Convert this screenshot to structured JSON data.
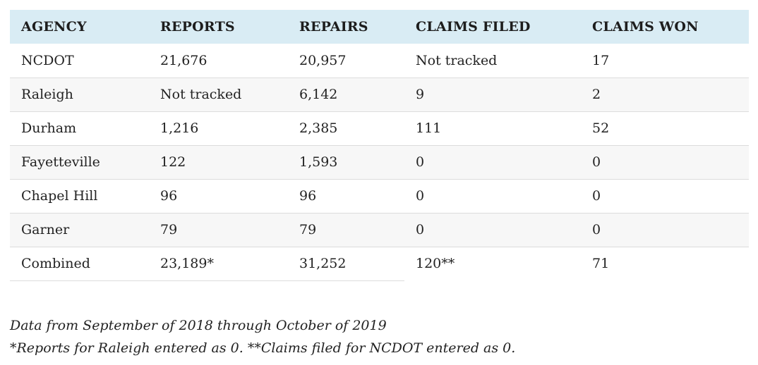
{
  "table": {
    "headers": [
      "AGENCY",
      "REPORTS",
      "REPAIRS",
      "CLAIMS FILED",
      "CLAIMS WON"
    ],
    "rows": [
      [
        "NCDOT",
        "21,676",
        "20,957",
        "Not tracked",
        "17"
      ],
      [
        "Raleigh",
        "Not tracked",
        "6,142",
        "9",
        "2"
      ],
      [
        "Durham",
        "1,216",
        "2,385",
        "111",
        "52"
      ],
      [
        "Fayetteville",
        "122",
        "1,593",
        "0",
        "0"
      ],
      [
        "Chapel Hill",
        "96",
        "96",
        "0",
        "0"
      ],
      [
        "Garner",
        "79",
        "79",
        "0",
        "0"
      ],
      [
        "Combined",
        "23,189*",
        "31,252",
        "120**",
        "71"
      ]
    ]
  },
  "notes": {
    "line1": "Data from September of 2018 through October of 2019",
    "line2": "*Reports for Raleigh entered as 0. **Claims filed for NCDOT entered as 0."
  },
  "colors": {
    "header_background": "#d9ecf4",
    "stripe_background": "#f7f7f7",
    "row_divider": "#dcdcdc",
    "text": "#222222"
  }
}
